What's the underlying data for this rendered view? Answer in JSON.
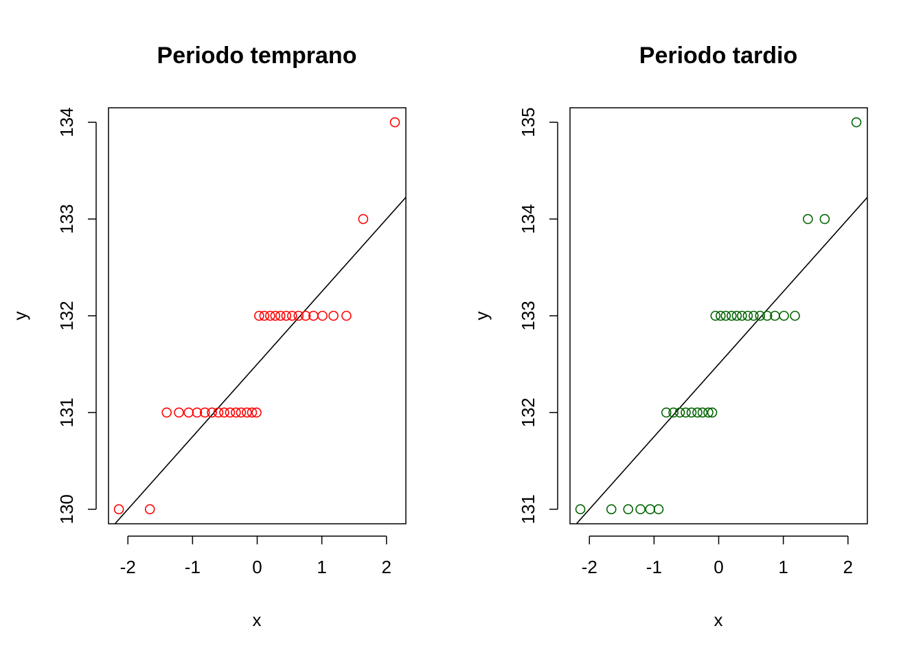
{
  "chart_data": [
    {
      "type": "scatter",
      "title": "Periodo temprano",
      "xlabel": "x",
      "ylabel": "y",
      "xlim": [
        -2.3,
        2.3
      ],
      "ylim": [
        129.85,
        134.15
      ],
      "x_ticks": [
        -2,
        -1,
        0,
        1,
        2
      ],
      "y_ticks": [
        130,
        131,
        132,
        133,
        134
      ],
      "color": "#FF0000",
      "grid": false,
      "series": [
        {
          "points": [
            {
              "x": -2.14,
              "y": 130
            },
            {
              "x": -1.66,
              "y": 130
            },
            {
              "x": -1.4,
              "y": 131
            },
            {
              "x": -1.21,
              "y": 131
            },
            {
              "x": -1.06,
              "y": 131
            },
            {
              "x": -0.93,
              "y": 131
            },
            {
              "x": -0.81,
              "y": 131
            },
            {
              "x": -0.7,
              "y": 131
            },
            {
              "x": -0.6,
              "y": 131
            },
            {
              "x": -0.51,
              "y": 131
            },
            {
              "x": -0.42,
              "y": 131
            },
            {
              "x": -0.33,
              "y": 131
            },
            {
              "x": -0.25,
              "y": 131
            },
            {
              "x": -0.16,
              "y": 131
            },
            {
              "x": -0.08,
              "y": 131
            },
            {
              "x": -0.01,
              "y": 131
            },
            {
              "x": 0.03,
              "y": 132
            },
            {
              "x": 0.11,
              "y": 132
            },
            {
              "x": 0.2,
              "y": 132
            },
            {
              "x": 0.28,
              "y": 132
            },
            {
              "x": 0.36,
              "y": 132
            },
            {
              "x": 0.45,
              "y": 132
            },
            {
              "x": 0.54,
              "y": 132
            },
            {
              "x": 0.64,
              "y": 132
            },
            {
              "x": 0.75,
              "y": 132
            },
            {
              "x": 0.87,
              "y": 132
            },
            {
              "x": 1.01,
              "y": 132
            },
            {
              "x": 1.18,
              "y": 132
            },
            {
              "x": 1.38,
              "y": 132
            },
            {
              "x": 1.64,
              "y": 133
            },
            {
              "x": 2.13,
              "y": 134
            }
          ]
        }
      ],
      "reference_line": {
        "intercept": 131.5,
        "slope": 0.75
      }
    },
    {
      "type": "scatter",
      "title": "Periodo tardio",
      "xlabel": "x",
      "ylabel": "y",
      "xlim": [
        -2.3,
        2.3
      ],
      "ylim": [
        130.85,
        135.15
      ],
      "x_ticks": [
        -2,
        -1,
        0,
        1,
        2
      ],
      "y_ticks": [
        131,
        132,
        133,
        134,
        135
      ],
      "color": "#006400",
      "grid": false,
      "series": [
        {
          "points": [
            {
              "x": -2.14,
              "y": 131
            },
            {
              "x": -1.66,
              "y": 131
            },
            {
              "x": -1.4,
              "y": 131
            },
            {
              "x": -1.21,
              "y": 131
            },
            {
              "x": -1.06,
              "y": 131
            },
            {
              "x": -0.93,
              "y": 131
            },
            {
              "x": -0.81,
              "y": 132
            },
            {
              "x": -0.7,
              "y": 132
            },
            {
              "x": -0.6,
              "y": 132
            },
            {
              "x": -0.51,
              "y": 132
            },
            {
              "x": -0.42,
              "y": 132
            },
            {
              "x": -0.33,
              "y": 132
            },
            {
              "x": -0.25,
              "y": 132
            },
            {
              "x": -0.16,
              "y": 132
            },
            {
              "x": -0.1,
              "y": 132
            },
            {
              "x": -0.05,
              "y": 133
            },
            {
              "x": 0.03,
              "y": 133
            },
            {
              "x": 0.11,
              "y": 133
            },
            {
              "x": 0.2,
              "y": 133
            },
            {
              "x": 0.28,
              "y": 133
            },
            {
              "x": 0.36,
              "y": 133
            },
            {
              "x": 0.45,
              "y": 133
            },
            {
              "x": 0.54,
              "y": 133
            },
            {
              "x": 0.64,
              "y": 133
            },
            {
              "x": 0.75,
              "y": 133
            },
            {
              "x": 0.87,
              "y": 133
            },
            {
              "x": 1.01,
              "y": 133
            },
            {
              "x": 1.18,
              "y": 133
            },
            {
              "x": 1.38,
              "y": 134
            },
            {
              "x": 1.64,
              "y": 134
            },
            {
              "x": 2.13,
              "y": 135
            }
          ]
        }
      ],
      "reference_line": {
        "intercept": 132.5,
        "slope": 0.75
      }
    }
  ]
}
